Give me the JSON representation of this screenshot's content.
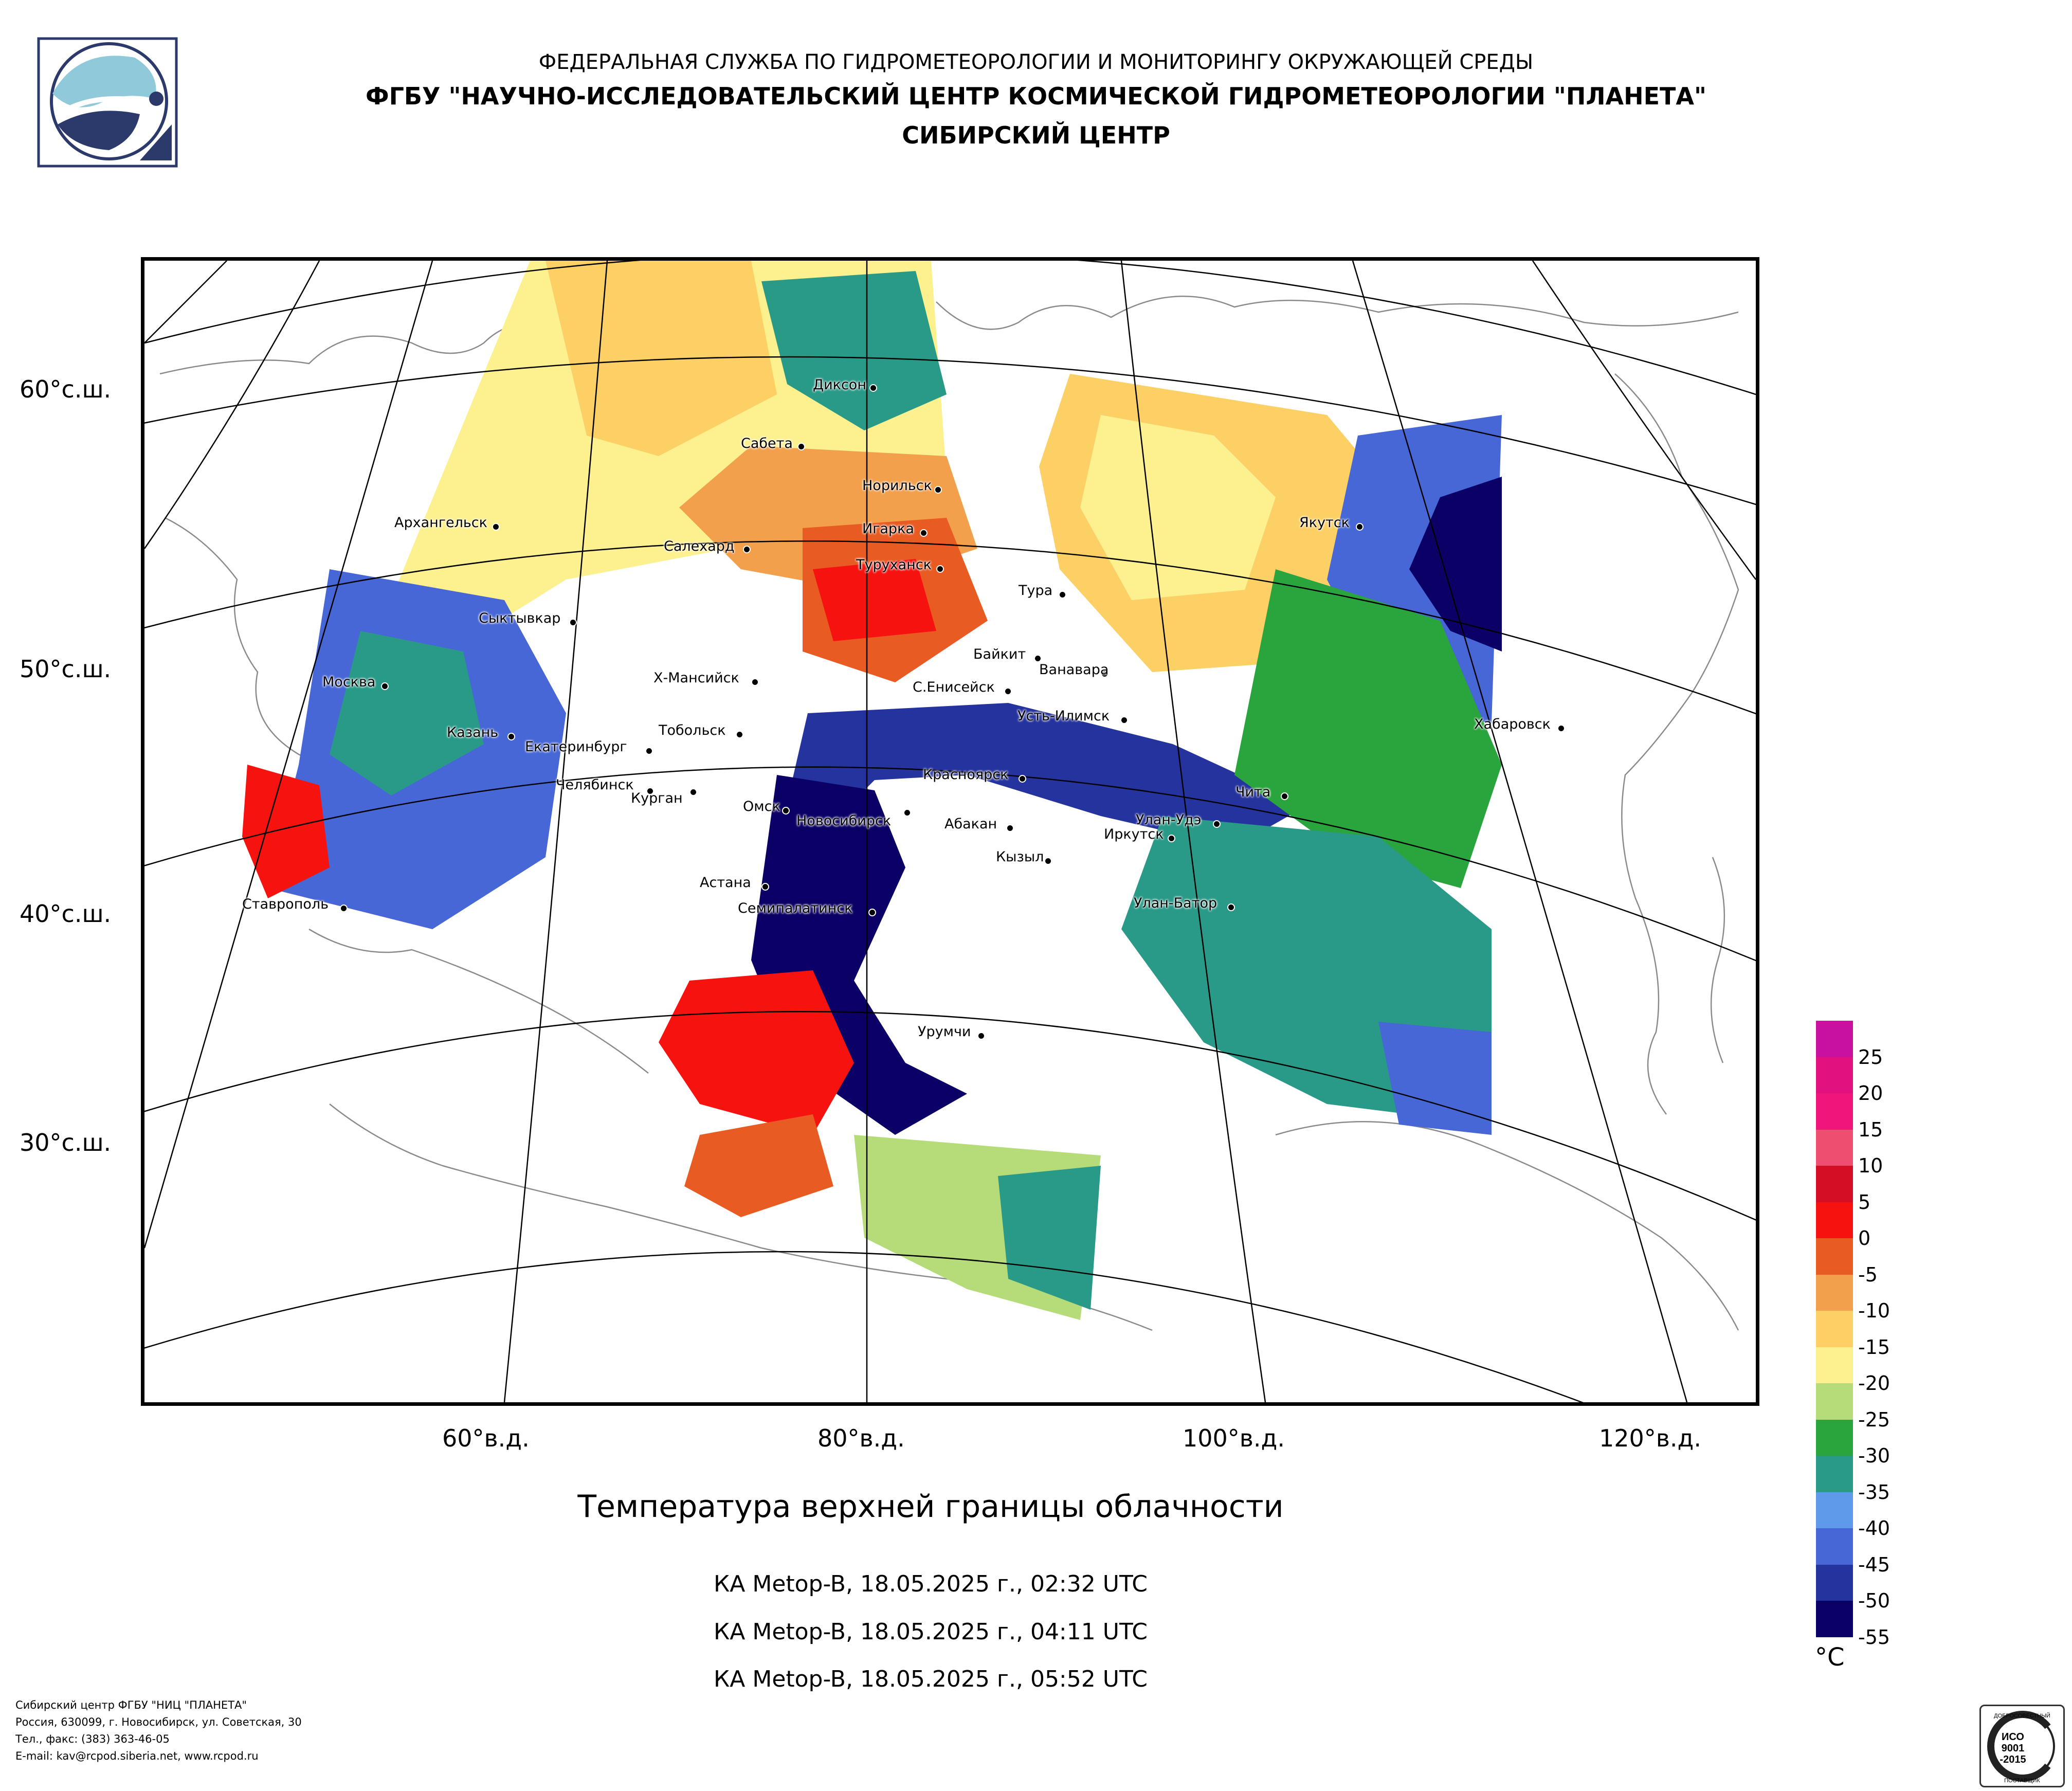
{
  "header": {
    "line1": "ФЕДЕРАЛЬНАЯ СЛУЖБА ПО ГИДРОМЕТЕОРОЛОГИИ И МОНИТОРИНГУ ОКРУЖАЮЩЕЙ СРЕДЫ",
    "line2": "ФГБУ \"НАУЧНО-ИССЛЕДОВАТЕЛЬСКИЙ ЦЕНТР КОСМИЧЕСКОЙ ГИДРОМЕТЕОРОЛОГИИ \"ПЛАНЕТА\"",
    "line3": "СИБИРСКИЙ ЦЕНТР"
  },
  "map": {
    "lat_labels": [
      "60°с.ш.",
      "50°с.ш.",
      "40°с.ш.",
      "30°с.ш."
    ],
    "lon_labels": [
      "60°в.д.",
      "80°в.д.",
      "100°в.д.",
      "120°в.д."
    ],
    "cities": [
      "Диксон",
      "Сабета",
      "Норильск",
      "Игарка",
      "Туруханск",
      "Салехард",
      "Архангельск",
      "Сыктывкар",
      "Якутск",
      "Тура",
      "Байкит",
      "Ванавара",
      "С.Енисейск",
      "Усть-Илимск",
      "Х-Мансийск",
      "Москва",
      "Казань",
      "Екатеринбург",
      "Тобольск",
      "Челябинск",
      "Курган",
      "Хабаровск",
      "Красноярск",
      "Омск",
      "Новосибирск",
      "Абакан",
      "Улан-Удэ",
      "Чита",
      "Иркутск",
      "Кызыл",
      "Астана",
      "Семипалатинск",
      "Улан-Батор",
      "Ставрополь",
      "Урумчи"
    ]
  },
  "product": {
    "title": "Температура верхней границы облачности",
    "passes": [
      "КА Metop-B, 18.05.2025 г., 02:32 UTC",
      "КА Metop-B, 18.05.2025 г., 04:11 UTC",
      "КА Metop-B, 18.05.2025 г., 05:52 UTC"
    ]
  },
  "legend": {
    "unit": "°C",
    "labels": [
      "25",
      "20",
      "15",
      "10",
      "5",
      "0",
      "-5",
      "-10",
      "-15",
      "-20",
      "-25",
      "-30",
      "-35",
      "-40",
      "-45",
      "-50",
      "-55"
    ],
    "colors": [
      "#c8119f",
      "#e1127f",
      "#f0157a",
      "#ec4f70",
      "#d40f25",
      "#f5120f",
      "#e85b23",
      "#f2a04b",
      "#fcd065",
      "#fdf08f",
      "#b6dc7a",
      "#2aa43c",
      "#2a9a88",
      "#5e9ae8",
      "#4767d6",
      "#25339e",
      "#0b0066"
    ]
  },
  "footer": {
    "line1": "Сибирский центр ФГБУ \"НИЦ \"ПЛАНЕТА\"",
    "line2": "Россия, 630099, г. Новосибирск, ул. Советская, 30",
    "line3": "Тел., факс: (383) 363-46-05",
    "line4": "E-mail: kav@rcpod.siberia.net, www.rcpod.ru"
  },
  "iso_badge": {
    "top": "ДОБРОСОВЕСТНЫЙ",
    "line1": "ИСО",
    "line2": "9001",
    "line3": "-2015",
    "bottom": "ПОСТАВЩИК"
  }
}
